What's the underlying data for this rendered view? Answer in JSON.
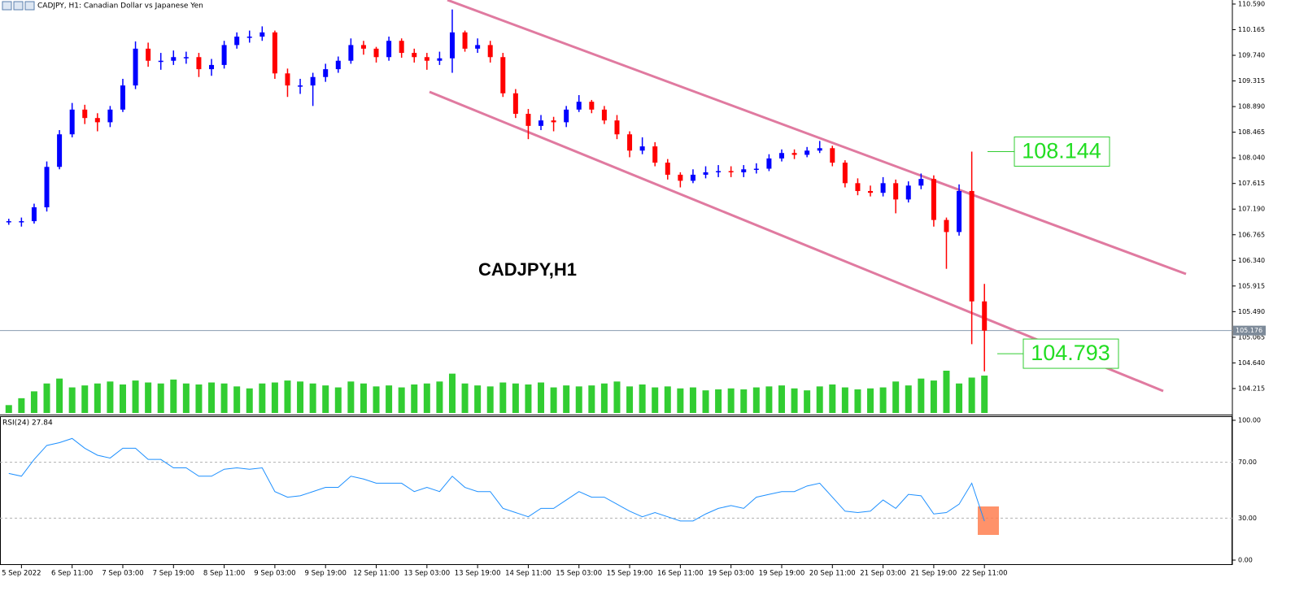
{
  "chart_data": [
    {
      "type": "candlestick",
      "title": "CADJPY, H1:  Canadian Dollar vs Japanese Yen",
      "annotation": "CADJPY,H1",
      "categories": [
        null,
        "5 Sep 2022",
        null,
        null,
        null,
        "6 Sep 11:00",
        null,
        null,
        null,
        "7 Sep 03:00",
        null,
        null,
        null,
        "7 Sep 19:00",
        null,
        null,
        null,
        "8 Sep 11:00",
        null,
        null,
        null,
        "9 Sep 03:00",
        null,
        null,
        null,
        "9 Sep 19:00",
        null,
        null,
        null,
        "12 Sep 11:00",
        null,
        null,
        null,
        "13 Sep 03:00",
        null,
        null,
        null,
        "13 Sep 19:00",
        null,
        null,
        null,
        "14 Sep 11:00",
        null,
        null,
        null,
        "15 Sep 03:00",
        null,
        null,
        null,
        "15 Sep 19:00",
        null,
        null,
        null,
        "16 Sep 11:00",
        null,
        null,
        null,
        "19 Sep 03:00",
        null,
        null,
        null,
        "19 Sep 19:00",
        null,
        null,
        null,
        "20 Sep 11:00",
        null,
        null,
        null,
        "21 Sep 03:00",
        null,
        null,
        null,
        "21 Sep 19:00",
        null,
        null,
        null,
        "22 Sep 11:00"
      ],
      "open": [
        106.97,
        106.99,
        106.99,
        107.22,
        107.89,
        108.43,
        108.84,
        108.7,
        108.63,
        108.84,
        109.24,
        109.85,
        109.65,
        109.65,
        109.71,
        109.71,
        109.51,
        109.58,
        109.91,
        110.05,
        110.05,
        110.12,
        109.44,
        109.24,
        109.24,
        109.38,
        109.51,
        109.65,
        109.91,
        109.85,
        109.71,
        109.98,
        109.78,
        109.71,
        109.65,
        109.69,
        110.12,
        109.85,
        109.91,
        109.71,
        109.11,
        108.77,
        108.57,
        108.66,
        108.63,
        108.84,
        108.97,
        108.84,
        108.66,
        108.43,
        108.16,
        108.23,
        107.96,
        107.76,
        107.66,
        107.76,
        107.8,
        107.82,
        107.8,
        107.85,
        107.86,
        108.03,
        108.12,
        108.09,
        108.16,
        108.2,
        107.96,
        107.62,
        107.49,
        107.46,
        107.62,
        107.35,
        107.58,
        107.69,
        107.01,
        106.81,
        107.49,
        105.66
      ],
      "high": [
        107.03,
        107.05,
        107.28,
        107.98,
        108.5,
        108.95,
        108.92,
        108.78,
        108.9,
        109.35,
        109.97,
        109.95,
        109.78,
        109.82,
        109.8,
        109.78,
        109.68,
        109.98,
        110.12,
        110.15,
        110.22,
        110.15,
        109.52,
        109.35,
        109.45,
        109.6,
        109.72,
        110.02,
        109.98,
        109.88,
        110.05,
        110.02,
        109.85,
        109.78,
        109.8,
        110.5,
        110.15,
        110.02,
        109.98,
        109.78,
        109.18,
        108.85,
        108.75,
        108.72,
        108.9,
        109.08,
        109.0,
        108.9,
        108.75,
        108.48,
        108.38,
        108.3,
        108.02,
        107.8,
        107.85,
        107.9,
        107.92,
        107.9,
        107.92,
        107.95,
        108.1,
        108.18,
        108.18,
        108.22,
        108.32,
        108.24,
        108.0,
        107.7,
        107.58,
        107.72,
        107.68,
        107.65,
        107.78,
        107.75,
        107.05,
        107.6,
        108.144,
        105.95
      ],
      "low": [
        106.93,
        106.9,
        106.95,
        107.15,
        107.85,
        108.38,
        108.6,
        108.48,
        108.55,
        108.8,
        109.18,
        109.55,
        109.5,
        109.58,
        109.6,
        109.38,
        109.4,
        109.52,
        109.85,
        109.95,
        109.98,
        109.35,
        109.05,
        109.1,
        108.9,
        109.3,
        109.45,
        109.6,
        109.75,
        109.62,
        109.65,
        109.7,
        109.62,
        109.5,
        109.58,
        109.45,
        109.8,
        109.78,
        109.62,
        109.05,
        108.7,
        108.35,
        108.5,
        108.48,
        108.55,
        108.8,
        108.78,
        108.6,
        108.35,
        108.05,
        108.1,
        107.9,
        107.68,
        107.55,
        107.62,
        107.7,
        107.72,
        107.72,
        107.72,
        107.78,
        107.82,
        107.98,
        108.02,
        108.05,
        108.12,
        107.9,
        107.55,
        107.42,
        107.4,
        107.4,
        107.12,
        107.3,
        107.52,
        106.9,
        106.2,
        106.75,
        104.95,
        104.5
      ],
      "close": [
        106.99,
        106.99,
        107.22,
        107.89,
        108.43,
        108.84,
        108.7,
        108.63,
        108.84,
        109.24,
        109.85,
        109.65,
        109.65,
        109.71,
        109.71,
        109.51,
        109.58,
        109.91,
        110.05,
        110.05,
        110.12,
        109.44,
        109.24,
        109.24,
        109.38,
        109.51,
        109.65,
        109.91,
        109.85,
        109.71,
        109.98,
        109.78,
        109.71,
        109.65,
        109.69,
        110.12,
        109.85,
        109.91,
        109.71,
        109.11,
        108.77,
        108.57,
        108.66,
        108.63,
        108.84,
        108.97,
        108.84,
        108.66,
        108.43,
        108.16,
        108.23,
        107.96,
        107.76,
        107.66,
        107.76,
        107.8,
        107.82,
        107.8,
        107.85,
        107.86,
        108.03,
        108.12,
        108.09,
        108.16,
        108.2,
        107.96,
        107.62,
        107.49,
        107.46,
        107.62,
        107.35,
        107.58,
        107.69,
        107.01,
        106.81,
        107.49,
        105.66,
        105.176
      ],
      "volume": [
        800,
        1500,
        2200,
        3000,
        3500,
        2600,
        2800,
        3000,
        3200,
        2900,
        3300,
        3100,
        3000,
        3400,
        3000,
        2900,
        3100,
        3000,
        2700,
        2500,
        3000,
        3100,
        3300,
        3200,
        3000,
        2800,
        2600,
        3200,
        3000,
        2700,
        2800,
        2600,
        2900,
        3000,
        3200,
        4000,
        3000,
        2800,
        2700,
        3100,
        3000,
        2900,
        3100,
        2600,
        2800,
        2700,
        2800,
        3000,
        3200,
        2700,
        2900,
        2600,
        2700,
        2500,
        2600,
        2300,
        2400,
        2500,
        2400,
        2600,
        2700,
        2800,
        2500,
        2300,
        2700,
        2900,
        2600,
        2400,
        2500,
        2600,
        3200,
        2800,
        3500,
        3300,
        4300,
        3000,
        3600,
        3800
      ],
      "up_color": "#0000ff",
      "down_color": "#ff0000",
      "volume_color": "#32cd32",
      "ylim": [
        103.783,
        110.657
      ],
      "yticks": [
        {
          "value": 110.59,
          "label": "110.590"
        },
        {
          "value": 110.165,
          "label": "110.165"
        },
        {
          "value": 109.74,
          "label": "109.740"
        },
        {
          "value": 109.315,
          "label": "109.315"
        },
        {
          "value": 108.89,
          "label": "108.890"
        },
        {
          "value": 108.465,
          "label": "108.465"
        },
        {
          "value": 108.04,
          "label": "108.040"
        },
        {
          "value": 107.615,
          "label": "107.615"
        },
        {
          "value": 107.19,
          "label": "107.190"
        },
        {
          "value": 106.765,
          "label": "106.765"
        },
        {
          "value": 106.34,
          "label": "106.340"
        },
        {
          "value": 105.915,
          "label": "105.915"
        },
        {
          "value": 105.49,
          "label": "105.490"
        },
        {
          "value": 105.065,
          "label": "105.065"
        },
        {
          "value": 104.64,
          "label": "104.640"
        },
        {
          "value": 104.215,
          "label": "104.215"
        }
      ],
      "current_price": 105.176,
      "price_labels": [
        108.144,
        104.793
      ]
    },
    {
      "type": "line",
      "label": "RSI(24) 27.84",
      "color": "#1e90ff",
      "values": [
        62,
        60,
        72,
        82,
        84,
        87,
        80,
        75,
        73,
        80,
        80,
        72,
        72,
        66,
        66,
        60,
        60,
        65,
        66,
        65,
        66,
        49,
        45,
        46,
        49,
        52,
        52,
        60,
        58,
        55,
        55,
        55,
        49,
        52,
        49,
        60,
        52,
        49,
        49,
        37,
        34,
        31,
        37,
        37,
        43,
        49,
        45,
        45,
        40,
        35,
        31,
        34,
        31,
        28,
        28,
        33,
        37,
        39,
        37,
        45,
        47,
        49,
        49,
        53,
        55,
        45,
        35,
        34,
        35,
        43,
        37,
        47,
        46,
        33,
        34,
        40,
        55,
        27.84
      ],
      "ylim": [
        0,
        100
      ],
      "yticks": [
        {
          "value": 100,
          "label": "100.00"
        },
        {
          "value": 70,
          "label": "70.00"
        },
        {
          "value": 30,
          "label": "30.00"
        },
        {
          "value": 0,
          "label": "0.00"
        }
      ]
    }
  ]
}
